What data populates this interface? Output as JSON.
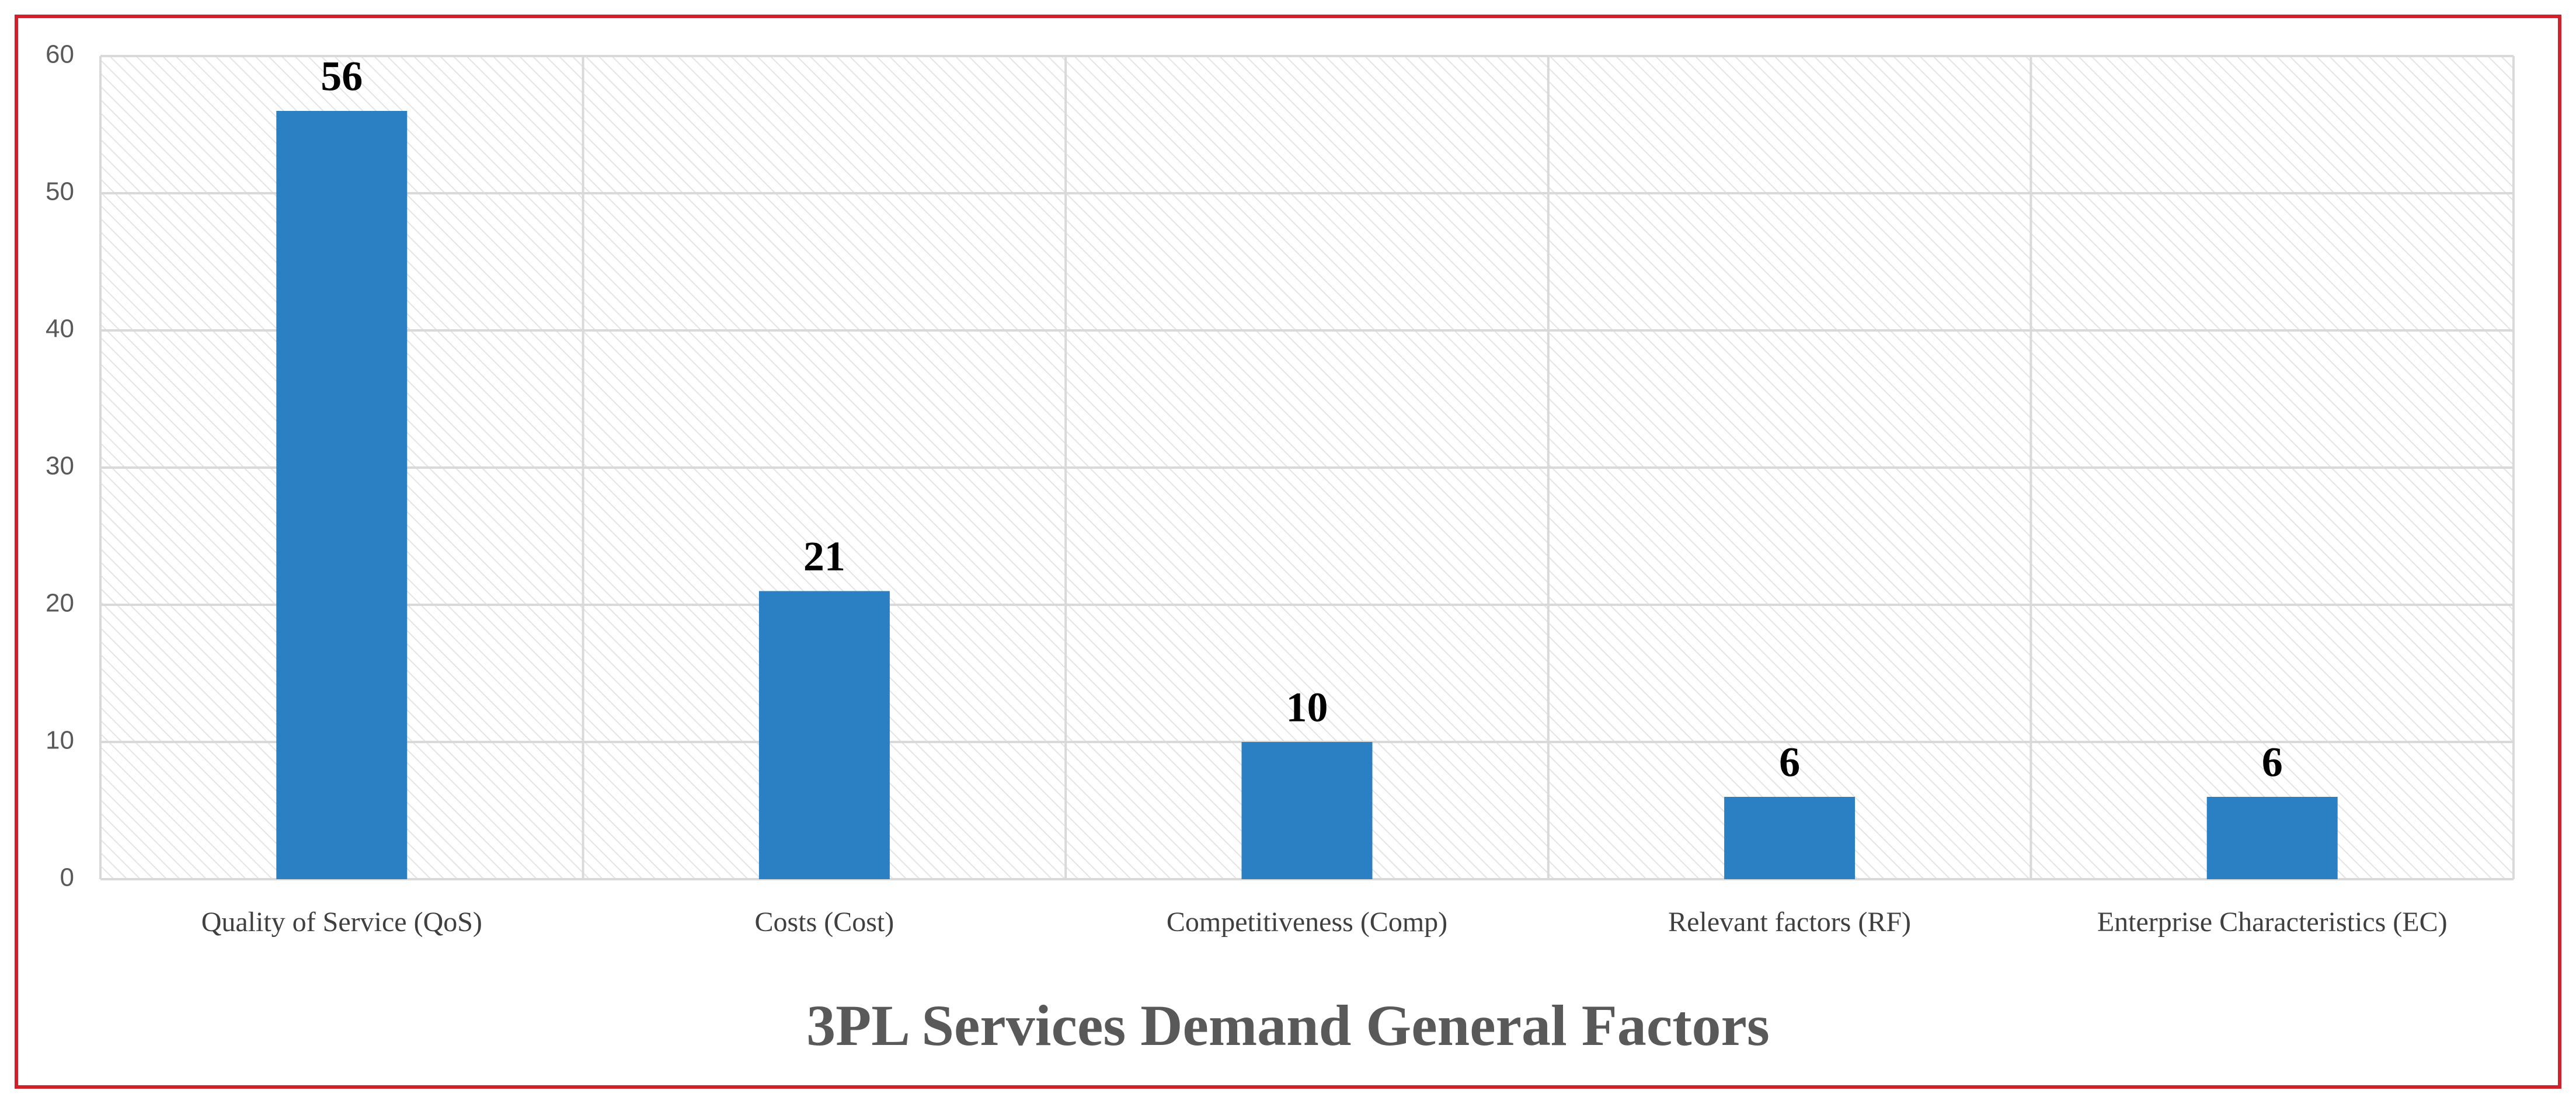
{
  "chart_data": {
    "type": "bar",
    "title": "3PL Services Demand General Factors",
    "categories": [
      "Quality of Service (QoS)",
      "Costs (Cost)",
      "Competitiveness (Comp)",
      "Relevant factors (RF)",
      "Enterprise Characteristics (EC)"
    ],
    "values": [
      56,
      21,
      10,
      6,
      6
    ],
    "color": "#2a80c2",
    "ylim": [
      0,
      60
    ],
    "yticks": [
      0,
      10,
      20,
      30,
      40,
      50,
      60
    ],
    "grid": true
  }
}
